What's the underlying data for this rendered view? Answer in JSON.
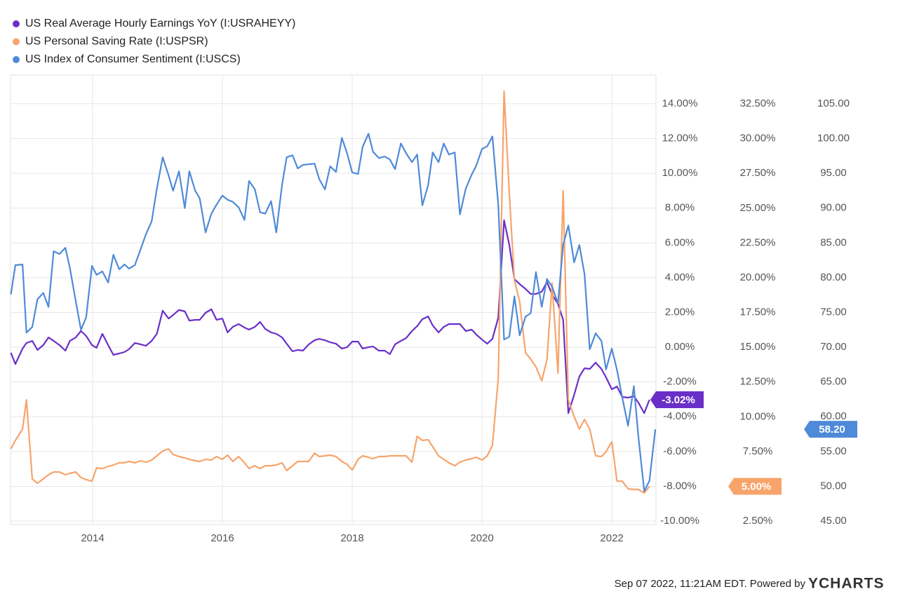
{
  "chart_data": {
    "type": "line",
    "x": [
      2012.74,
      2012.81,
      2012.92,
      2012.98,
      2013.07,
      2013.15,
      2013.24,
      2013.32,
      2013.4,
      2013.49,
      2013.58,
      2013.65,
      2013.74,
      2013.82,
      2013.9,
      2013.99,
      2014.06,
      2014.15,
      2014.24,
      2014.32,
      2014.41,
      2014.49,
      2014.56,
      2014.65,
      2014.74,
      2014.82,
      2014.91,
      2014.99,
      2015.08,
      2015.17,
      2015.24,
      2015.33,
      2015.42,
      2015.49,
      2015.58,
      2015.65,
      2015.74,
      2015.83,
      2015.91,
      2016.0,
      2016.08,
      2016.16,
      2016.25,
      2016.34,
      2016.41,
      2016.5,
      2016.58,
      2016.66,
      2016.75,
      2016.83,
      2016.92,
      2016.99,
      2017.08,
      2017.16,
      2017.24,
      2017.33,
      2017.42,
      2017.49,
      2017.58,
      2017.66,
      2017.75,
      2017.84,
      2017.92,
      2018.0,
      2018.09,
      2018.16,
      2018.25,
      2018.32,
      2018.41,
      2018.5,
      2018.58,
      2018.66,
      2018.75,
      2018.83,
      2018.92,
      2019.0,
      2019.08,
      2019.17,
      2019.24,
      2019.33,
      2019.41,
      2019.49,
      2019.58,
      2019.66,
      2019.75,
      2019.84,
      2019.91,
      2020.0,
      2020.08,
      2020.16,
      2020.25,
      2020.34,
      2020.42,
      2020.5,
      2020.58,
      2020.67,
      2020.75,
      2020.83,
      2020.92,
      2021.0,
      2021.08,
      2021.17,
      2021.25,
      2021.33,
      2021.42,
      2021.5,
      2021.58,
      2021.66,
      2021.75,
      2021.84,
      2021.91,
      2022.0,
      2022.08,
      2022.16,
      2022.25,
      2022.34,
      2022.41,
      2022.5,
      2022.58,
      2022.67
    ],
    "xlim": [
      2012.735,
      2022.68
    ],
    "xticks": [
      2014,
      2016,
      2018,
      2020,
      2022
    ],
    "ylim": [
      -10.2,
      15.65
    ],
    "yticks": [
      {
        "value": -10,
        "label": "-10.00%"
      },
      {
        "value": -8,
        "label": "-8.00%"
      },
      {
        "value": -6,
        "label": "-6.00%"
      },
      {
        "value": -4,
        "label": "-4.00%"
      },
      {
        "value": -2,
        "label": "-2.00%"
      },
      {
        "value": 0,
        "label": "0.00%"
      },
      {
        "value": 2,
        "label": "2.00%"
      },
      {
        "value": 4,
        "label": "4.00%"
      },
      {
        "value": 6,
        "label": "6.00%"
      },
      {
        "value": 8,
        "label": "8.00%"
      },
      {
        "value": 10,
        "label": "10.00%"
      },
      {
        "value": 12,
        "label": "12.00%"
      },
      {
        "value": 14,
        "label": "14.00%"
      }
    ],
    "y2lim": [
      2.25,
      34.57
    ],
    "y2ticks": [
      {
        "value": 2.5,
        "label": "2.50%"
      },
      {
        "value": 5,
        "label": "5.00%"
      },
      {
        "value": 7.5,
        "label": "7.50%"
      },
      {
        "value": 10,
        "label": "10.00%"
      },
      {
        "value": 12.5,
        "label": "12.50%"
      },
      {
        "value": 15,
        "label": "15.00%"
      },
      {
        "value": 17.5,
        "label": "17.50%"
      },
      {
        "value": 20,
        "label": "20.00%"
      },
      {
        "value": 22.5,
        "label": "22.50%"
      },
      {
        "value": 25,
        "label": "25.00%"
      },
      {
        "value": 27.5,
        "label": "27.50%"
      },
      {
        "value": 30,
        "label": "30.00%"
      },
      {
        "value": 32.5,
        "label": "32.50%"
      }
    ],
    "y3lim": [
      44.5,
      109.13
    ],
    "y3ticks": [
      {
        "value": 45,
        "label": "45.00"
      },
      {
        "value": 50,
        "label": "50.00"
      },
      {
        "value": 55,
        "label": "55.00"
      },
      {
        "value": 60,
        "label": "60.00"
      },
      {
        "value": 65,
        "label": "65.00"
      },
      {
        "value": 70,
        "label": "70.00"
      },
      {
        "value": 75,
        "label": "75.00"
      },
      {
        "value": 80,
        "label": "80.00"
      },
      {
        "value": 85,
        "label": "85.00"
      },
      {
        "value": 90,
        "label": "90.00"
      },
      {
        "value": 95,
        "label": "95.00"
      },
      {
        "value": 100,
        "label": "100.00"
      },
      {
        "value": 105,
        "label": "105.00"
      }
    ],
    "grid": true,
    "legend": "top-left",
    "series": [
      {
        "name": "US Real Average Hourly Earnings YoY (I:USRAHEYY)",
        "color": "#6a2fc8",
        "axis": "y",
        "end_label": "-3.02%",
        "values": [
          -0.32,
          -0.97,
          -0.08,
          0.24,
          0.36,
          -0.16,
          0.12,
          0.56,
          0.36,
          0.12,
          -0.2,
          0.36,
          0.56,
          0.93,
          0.65,
          0.12,
          -0.04,
          0.77,
          0.12,
          -0.44,
          -0.36,
          -0.28,
          -0.12,
          0.24,
          0.16,
          0.08,
          0.36,
          0.77,
          2.1,
          1.65,
          1.85,
          2.14,
          2.06,
          1.53,
          1.57,
          1.57,
          1.98,
          2.18,
          1.57,
          1.65,
          0.85,
          1.17,
          1.33,
          1.13,
          1.01,
          1.17,
          1.45,
          1.05,
          0.85,
          0.77,
          0.56,
          0.2,
          -0.24,
          -0.16,
          -0.2,
          0.16,
          0.4,
          0.48,
          0.4,
          0.28,
          0.2,
          -0.08,
          0,
          0.32,
          0.32,
          -0.08,
          0,
          0.04,
          -0.2,
          -0.2,
          -0.4,
          0.16,
          0.36,
          0.52,
          0.93,
          1.21,
          1.61,
          1.77,
          1.25,
          0.85,
          1.17,
          1.33,
          1.33,
          1.33,
          0.93,
          1.01,
          0.73,
          0.44,
          0.2,
          0.48,
          1.69,
          7.3,
          5.89,
          3.91,
          3.63,
          3.35,
          3.06,
          3.06,
          3.19,
          3.75,
          3.02,
          2.5,
          1.57,
          -3.79,
          -2.74,
          -1.69,
          -1.21,
          -1.25,
          -0.89,
          -1.25,
          -1.73,
          -2.42,
          -2.26,
          -2.86,
          -2.9,
          -2.82,
          -3.19,
          -3.79,
          -3.02,
          null
        ]
      },
      {
        "name": "US Personal Saving Rate (I:USPSR)",
        "color": "#f7a46b",
        "axis": "y2",
        "end_label": "5.00%",
        "values": [
          7.69,
          8.3,
          9.11,
          11.22,
          5.53,
          5.22,
          5.53,
          5.83,
          6.03,
          6.03,
          5.83,
          5.93,
          6.03,
          5.63,
          5.48,
          5.37,
          6.33,
          6.28,
          6.43,
          6.53,
          6.69,
          6.69,
          6.79,
          6.69,
          6.84,
          6.74,
          6.89,
          7.19,
          7.54,
          7.69,
          7.29,
          7.14,
          7.04,
          6.94,
          6.84,
          6.79,
          6.94,
          6.89,
          7.14,
          6.94,
          7.24,
          6.79,
          7.14,
          6.69,
          6.28,
          6.48,
          6.28,
          6.48,
          6.48,
          6.53,
          6.69,
          6.13,
          6.48,
          6.79,
          6.79,
          6.79,
          7.39,
          7.14,
          7.19,
          7.24,
          7.14,
          6.79,
          6.58,
          6.18,
          6.94,
          7.19,
          7.09,
          6.99,
          7.14,
          7.14,
          7.19,
          7.19,
          7.19,
          7.19,
          6.74,
          8.6,
          8.3,
          8.35,
          7.85,
          7.19,
          6.94,
          6.69,
          6.48,
          6.74,
          6.89,
          6.99,
          7.09,
          6.89,
          7.19,
          7.95,
          12.74,
          33.41,
          26.1,
          19.8,
          18.29,
          14.6,
          14.15,
          13.59,
          12.58,
          14.1,
          19.6,
          13.14,
          26.25,
          11.22,
          10.01,
          9.11,
          9.81,
          9.11,
          7.19,
          7.14,
          7.49,
          8.2,
          5.37,
          5.37,
          4.82,
          4.77,
          4.77,
          4.52,
          5.0,
          null
        ]
      },
      {
        "name": "US Index of Consumer Sentiment (I:USCS)",
        "color": "#4f8ad8",
        "axis": "y3",
        "end_label": "58.20",
        "values": [
          77.6,
          81.8,
          81.9,
          72.1,
          72.9,
          76.9,
          77.8,
          75.8,
          83.8,
          83.4,
          84.3,
          81.4,
          76.6,
          72.5,
          74.3,
          81.7,
          80.4,
          80.9,
          79.3,
          83.3,
          81.2,
          81.9,
          81.3,
          81.8,
          84.1,
          86.2,
          88.1,
          92.8,
          97.3,
          94.7,
          92.5,
          95.3,
          90.0,
          95.3,
          92.5,
          91.4,
          86.5,
          89.2,
          90.5,
          91.8,
          91.2,
          90.9,
          90.1,
          88.3,
          93.9,
          92.7,
          89.4,
          89.2,
          91.0,
          86.5,
          93.4,
          97.3,
          97.6,
          95.7,
          96.2,
          96.3,
          96.4,
          94.2,
          92.7,
          96.0,
          95.2,
          100.1,
          97.9,
          95.1,
          94.9,
          98.8,
          100.7,
          98.1,
          97.2,
          97.4,
          97.0,
          95.6,
          99.3,
          97.9,
          96.6,
          97.7,
          90.4,
          93.3,
          98.0,
          96.6,
          99.3,
          97.7,
          98.0,
          89.1,
          92.8,
          94.8,
          96.1,
          98.5,
          98.9,
          100.3,
          90.5,
          71.1,
          71.5,
          77.3,
          71.7,
          74.4,
          74.9,
          80.8,
          75.8,
          79.8,
          78.7,
          76.3,
          84.7,
          87.5,
          82.2,
          84.7,
          80.5,
          69.7,
          72.0,
          70.9,
          66.8,
          69.8,
          66.7,
          62.8,
          58.7,
          64.4,
          57.1,
          49.3,
          50.8,
          58.2
        ]
      }
    ],
    "footer": {
      "timestamp": "Sep 07 2022, 11:21AM EDT. Powered by",
      "brand": "YCHARTS"
    }
  }
}
